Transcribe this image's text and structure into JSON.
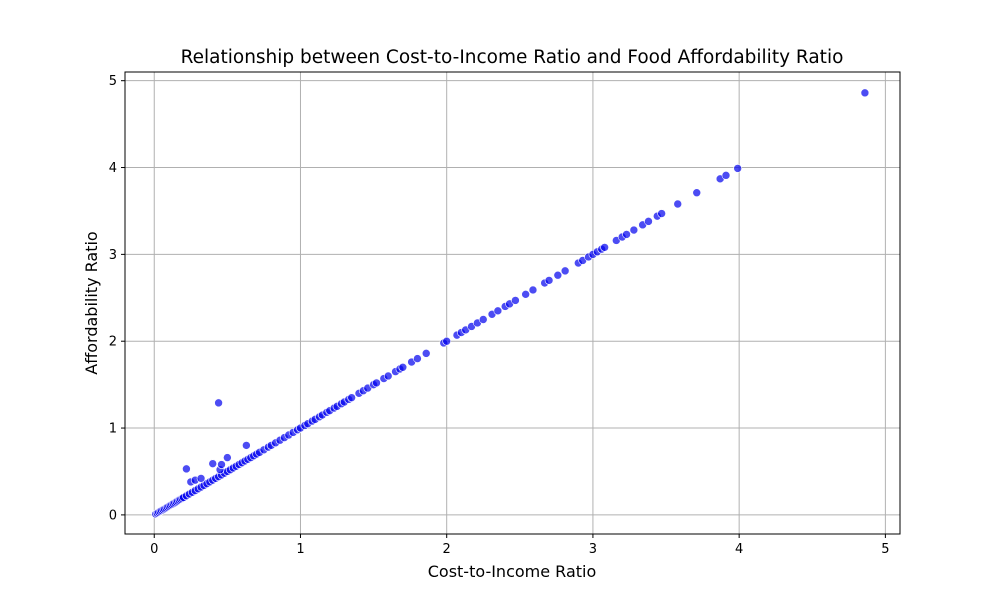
{
  "chart_data": {
    "type": "scatter",
    "title": "Relationship between Cost-to-Income Ratio and Food Affordability Ratio",
    "xlabel": "Cost-to-Income Ratio",
    "ylabel": "Affordability Ratio",
    "xlim": [
      -0.2,
      5.1
    ],
    "ylim": [
      -0.22,
      5.1
    ],
    "xticks": [
      0,
      1,
      2,
      3,
      4,
      5
    ],
    "yticks": [
      0,
      1,
      2,
      3,
      4,
      5
    ],
    "grid": true,
    "marker_color": "#0000ee",
    "edge_color": "#ffffff",
    "outliers": [
      {
        "x": 0.22,
        "y": 0.53
      },
      {
        "x": 0.25,
        "y": 0.38
      },
      {
        "x": 0.28,
        "y": 0.4
      },
      {
        "x": 0.32,
        "y": 0.42
      },
      {
        "x": 0.4,
        "y": 0.59
      },
      {
        "x": 0.44,
        "y": 1.29
      },
      {
        "x": 0.45,
        "y": 0.52
      },
      {
        "x": 0.46,
        "y": 0.58
      },
      {
        "x": 0.5,
        "y": 0.66
      },
      {
        "x": 0.63,
        "y": 0.8
      }
    ],
    "diagonal_x": [
      0.01,
      0.02,
      0.03,
      0.04,
      0.05,
      0.06,
      0.07,
      0.08,
      0.09,
      0.1,
      0.11,
      0.12,
      0.13,
      0.14,
      0.15,
      0.16,
      0.17,
      0.18,
      0.19,
      0.2,
      0.22,
      0.24,
      0.26,
      0.28,
      0.3,
      0.32,
      0.34,
      0.36,
      0.38,
      0.4,
      0.42,
      0.44,
      0.46,
      0.48,
      0.5,
      0.52,
      0.54,
      0.56,
      0.58,
      0.6,
      0.62,
      0.64,
      0.66,
      0.68,
      0.7,
      0.72,
      0.75,
      0.78,
      0.8,
      0.83,
      0.86,
      0.89,
      0.92,
      0.95,
      0.98,
      1.0,
      1.03,
      1.05,
      1.08,
      1.1,
      1.13,
      1.15,
      1.18,
      1.2,
      1.23,
      1.25,
      1.28,
      1.3,
      1.33,
      1.35,
      1.4,
      1.43,
      1.46,
      1.5,
      1.52,
      1.57,
      1.6,
      1.65,
      1.68,
      1.7,
      1.76,
      1.8,
      1.86,
      1.98,
      2.0,
      2.07,
      2.1,
      2.13,
      2.17,
      2.21,
      2.25,
      2.31,
      2.35,
      2.4,
      2.43,
      2.47,
      2.54,
      2.59,
      2.67,
      2.7,
      2.76,
      2.81,
      2.9,
      2.93,
      2.97,
      3.0,
      3.03,
      3.06,
      3.08,
      3.16,
      3.2,
      3.23,
      3.28,
      3.34,
      3.38,
      3.44,
      3.47,
      3.58,
      3.71,
      3.87,
      3.91,
      3.99,
      4.86
    ]
  }
}
